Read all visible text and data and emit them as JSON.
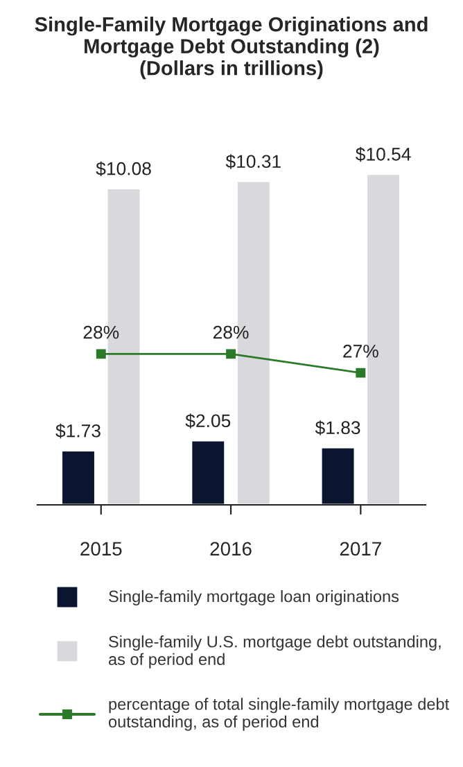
{
  "chart_data": {
    "type": "bar",
    "title": "Single-Family Mortgage Originations and\nMortgage Debt Outstanding (2)\n(Dollars in trillions)",
    "categories": [
      "2015",
      "2016",
      "2017"
    ],
    "series": [
      {
        "name": "Single-family mortgage loan originations",
        "color": "#0b1530",
        "values": [
          1.73,
          2.05,
          1.83
        ],
        "value_labels": [
          "$1.73",
          "$2.05",
          "$1.83"
        ]
      },
      {
        "name": "Single-family U.S. mortgage debt outstanding, as of period end",
        "color": "#d9d8dd",
        "values": [
          10.08,
          10.31,
          10.54
        ],
        "value_labels": [
          "$10.08",
          "$10.31",
          "$10.54"
        ]
      },
      {
        "name": "percentage of total single-family mortgage debt outstanding, as of period end",
        "type": "line",
        "axis": "y2",
        "color": "#2a7a2a",
        "values": [
          28,
          28,
          27
        ],
        "value_labels": [
          "28%",
          "28%",
          "27%"
        ],
        "marker": "square"
      }
    ],
    "tick_labels": "x",
    "grid": false,
    "legend": "bottom"
  }
}
